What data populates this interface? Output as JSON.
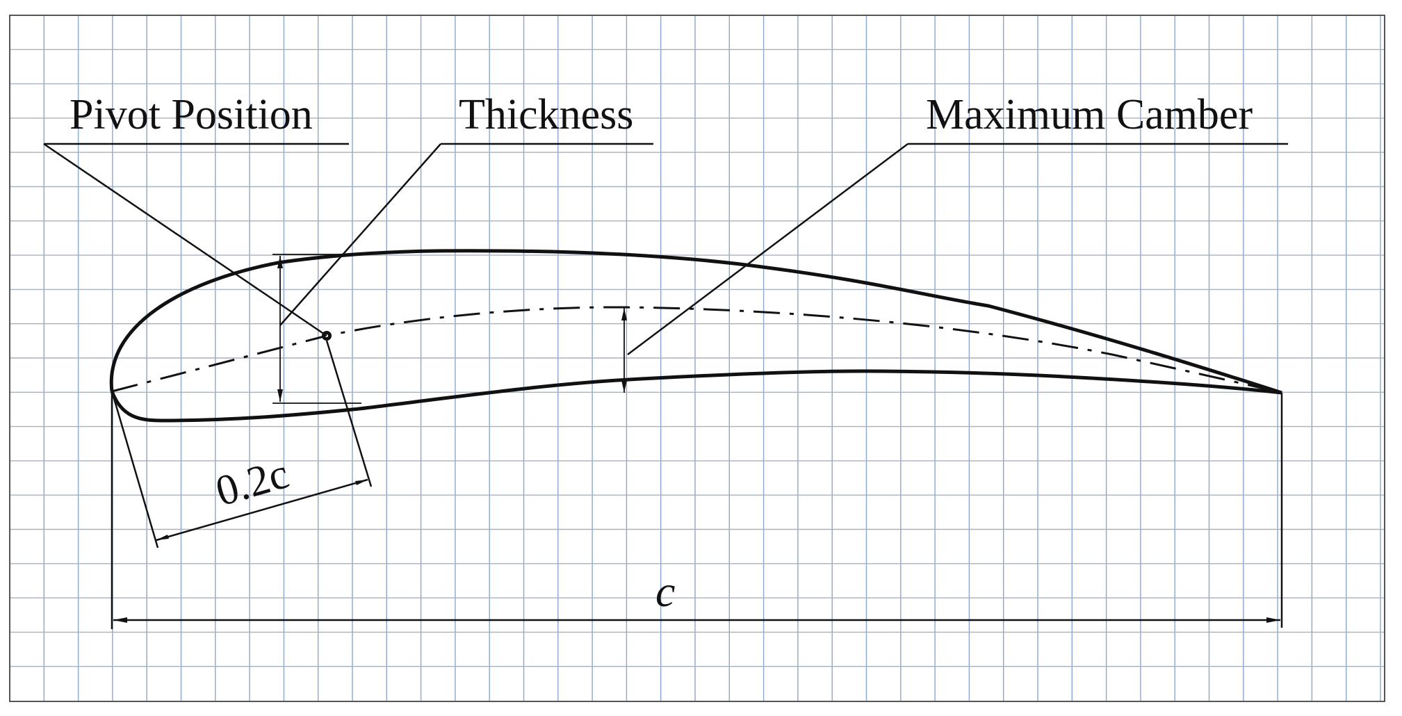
{
  "labels": {
    "pivot_position": "Pivot Position",
    "thickness": "Thickness",
    "maximum_camber": "Maximum Camber",
    "pivot_distance": "0.2c",
    "chord": "c"
  },
  "colors": {
    "grid": "#8aa6cc",
    "ink": "#111111",
    "background": "#ffffff"
  }
}
